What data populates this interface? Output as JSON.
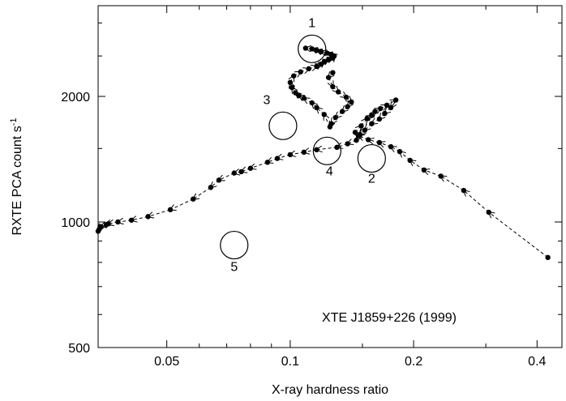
{
  "chart_data": {
    "type": "scatter",
    "title": "",
    "xlabel": "X-ray hardness ratio",
    "ylabel_main": "RXTE PCA count s",
    "ylabel_superscript": "-1",
    "x_scale": "log",
    "y_scale": "log",
    "xlim": [
      0.034,
      0.46
    ],
    "ylim": [
      500,
      3300
    ],
    "x_ticks": [
      {
        "value": 0.05,
        "label": "0.05"
      },
      {
        "value": 0.1,
        "label": "0.1"
      },
      {
        "value": 0.2,
        "label": "0.2"
      },
      {
        "value": 0.4,
        "label": "0.4"
      }
    ],
    "y_ticks": [
      {
        "value": 500,
        "label": "500"
      },
      {
        "value": 1000,
        "label": "1000"
      },
      {
        "value": 2000,
        "label": "2000"
      }
    ],
    "y_minor_ticks": [
      600,
      700,
      800,
      900,
      1500,
      2500,
      3000
    ],
    "x_minor_ticks": [
      0.06,
      0.07,
      0.08,
      0.09,
      0.15,
      0.3
    ],
    "annotation": "XTE J1859+226 (1999)",
    "legend": "none",
    "grid": false,
    "series": [
      {
        "points": [
          [
            0.425,
            822
          ],
          [
            0.305,
            1055
          ],
          [
            0.265,
            1190
          ],
          [
            0.233,
            1288
          ],
          [
            0.212,
            1332
          ],
          [
            0.196,
            1405
          ],
          [
            0.185,
            1475
          ],
          [
            0.176,
            1515
          ],
          [
            0.165,
            1550
          ],
          [
            0.155,
            1575
          ],
          [
            0.147,
            1610
          ],
          [
            0.144,
            1640
          ],
          [
            0.149,
            1700
          ],
          [
            0.154,
            1770
          ],
          [
            0.158,
            1800
          ],
          [
            0.161,
            1840
          ],
          [
            0.166,
            1870
          ],
          [
            0.172,
            1905
          ],
          [
            0.181,
            1960
          ],
          [
            0.176,
            1880
          ],
          [
            0.17,
            1820
          ],
          [
            0.165,
            1765
          ],
          [
            0.158,
            1720
          ],
          [
            0.152,
            1660
          ],
          [
            0.148,
            1620
          ],
          [
            0.145,
            1570
          ],
          [
            0.138,
            1540
          ],
          [
            0.13,
            1510
          ],
          [
            0.116,
            1490
          ],
          [
            0.108,
            1470
          ],
          [
            0.1,
            1450
          ],
          [
            0.093,
            1420
          ],
          [
            0.088,
            1390
          ],
          [
            0.08,
            1345
          ],
          [
            0.076,
            1320
          ],
          [
            0.073,
            1310
          ],
          [
            0.067,
            1260
          ],
          [
            0.064,
            1210
          ],
          [
            0.058,
            1135
          ],
          [
            0.051,
            1070
          ],
          [
            0.045,
            1030
          ],
          [
            0.041,
            1010
          ],
          [
            0.038,
            1000
          ],
          [
            0.036,
            990
          ],
          [
            0.0356,
            985
          ],
          [
            0.0345,
            975
          ],
          [
            0.0342,
            960
          ],
          [
            0.034,
            950
          ]
        ]
      },
      {
        "points": [
          [
            0.127,
            2280
          ],
          [
            0.124,
            2220
          ],
          [
            0.127,
            2110
          ],
          [
            0.131,
            2050
          ],
          [
            0.137,
            1990
          ],
          [
            0.141,
            1940
          ],
          [
            0.138,
            1890
          ],
          [
            0.134,
            1840
          ],
          [
            0.129,
            1780
          ],
          [
            0.126,
            1720
          ],
          [
            0.125,
            1690
          ],
          [
            0.121,
            1810
          ],
          [
            0.116,
            1880
          ],
          [
            0.113,
            1930
          ],
          [
            0.108,
            1980
          ],
          [
            0.105,
            2010
          ],
          [
            0.103,
            2040
          ],
          [
            0.101,
            2100
          ],
          [
            0.1,
            2160
          ],
          [
            0.102,
            2240
          ],
          [
            0.106,
            2290
          ],
          [
            0.111,
            2330
          ],
          [
            0.116,
            2360
          ],
          [
            0.119,
            2390
          ],
          [
            0.121,
            2420
          ],
          [
            0.124,
            2450
          ],
          [
            0.127,
            2470
          ],
          [
            0.128,
            2500
          ],
          [
            0.126,
            2520
          ],
          [
            0.123,
            2540
          ],
          [
            0.119,
            2560
          ],
          [
            0.116,
            2580
          ],
          [
            0.113,
            2600
          ],
          [
            0.109,
            2610
          ]
        ]
      }
    ],
    "circles": [
      {
        "x": 0.113,
        "y": 2600,
        "label": "1"
      },
      {
        "x": 0.158,
        "y": 1420,
        "label": "2"
      },
      {
        "x": 0.096,
        "y": 1700,
        "label": "3"
      },
      {
        "x": 0.123,
        "y": 1480,
        "label": "4"
      },
      {
        "x": 0.073,
        "y": 880,
        "label": "5"
      }
    ]
  }
}
